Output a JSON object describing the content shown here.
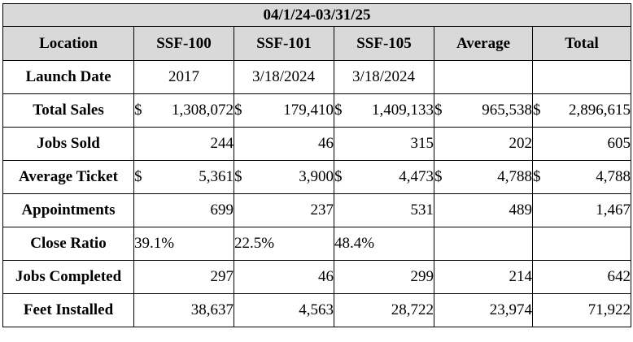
{
  "title": "04/1/24-03/31/25",
  "headers": [
    "Location",
    "SSF-100",
    "SSF-101",
    "SSF-105",
    "Average",
    "Total"
  ],
  "rows": [
    {
      "label": "Launch Date",
      "kind": "date",
      "cells": [
        "2017",
        "3/18/2024",
        "3/18/2024",
        "",
        ""
      ]
    },
    {
      "label": "Total Sales",
      "kind": "money",
      "cells": [
        "1,308,072",
        "179,410",
        "1,409,133",
        "965,538",
        "2,896,615"
      ]
    },
    {
      "label": "Jobs Sold",
      "kind": "number",
      "cells": [
        "244",
        "46",
        "315",
        "202",
        "605"
      ]
    },
    {
      "label": "Average Ticket",
      "kind": "money",
      "cells": [
        "5,361",
        "3,900",
        "4,473",
        "4,788",
        "4,788"
      ]
    },
    {
      "label": "Appointments",
      "kind": "number",
      "cells": [
        "699",
        "237",
        "531",
        "489",
        "1,467"
      ]
    },
    {
      "label": "Close Ratio",
      "kind": "percent",
      "cells": [
        "39.1%",
        "22.5%",
        "48.4%",
        "",
        ""
      ]
    },
    {
      "label": "Jobs Completed",
      "kind": "number",
      "cells": [
        "297",
        "46",
        "299",
        "214",
        "642"
      ]
    },
    {
      "label": "Feet Installed",
      "kind": "number",
      "cells": [
        "38,637",
        "4,563",
        "28,722",
        "23,974",
        "71,922"
      ]
    }
  ],
  "currency_symbol": "$"
}
